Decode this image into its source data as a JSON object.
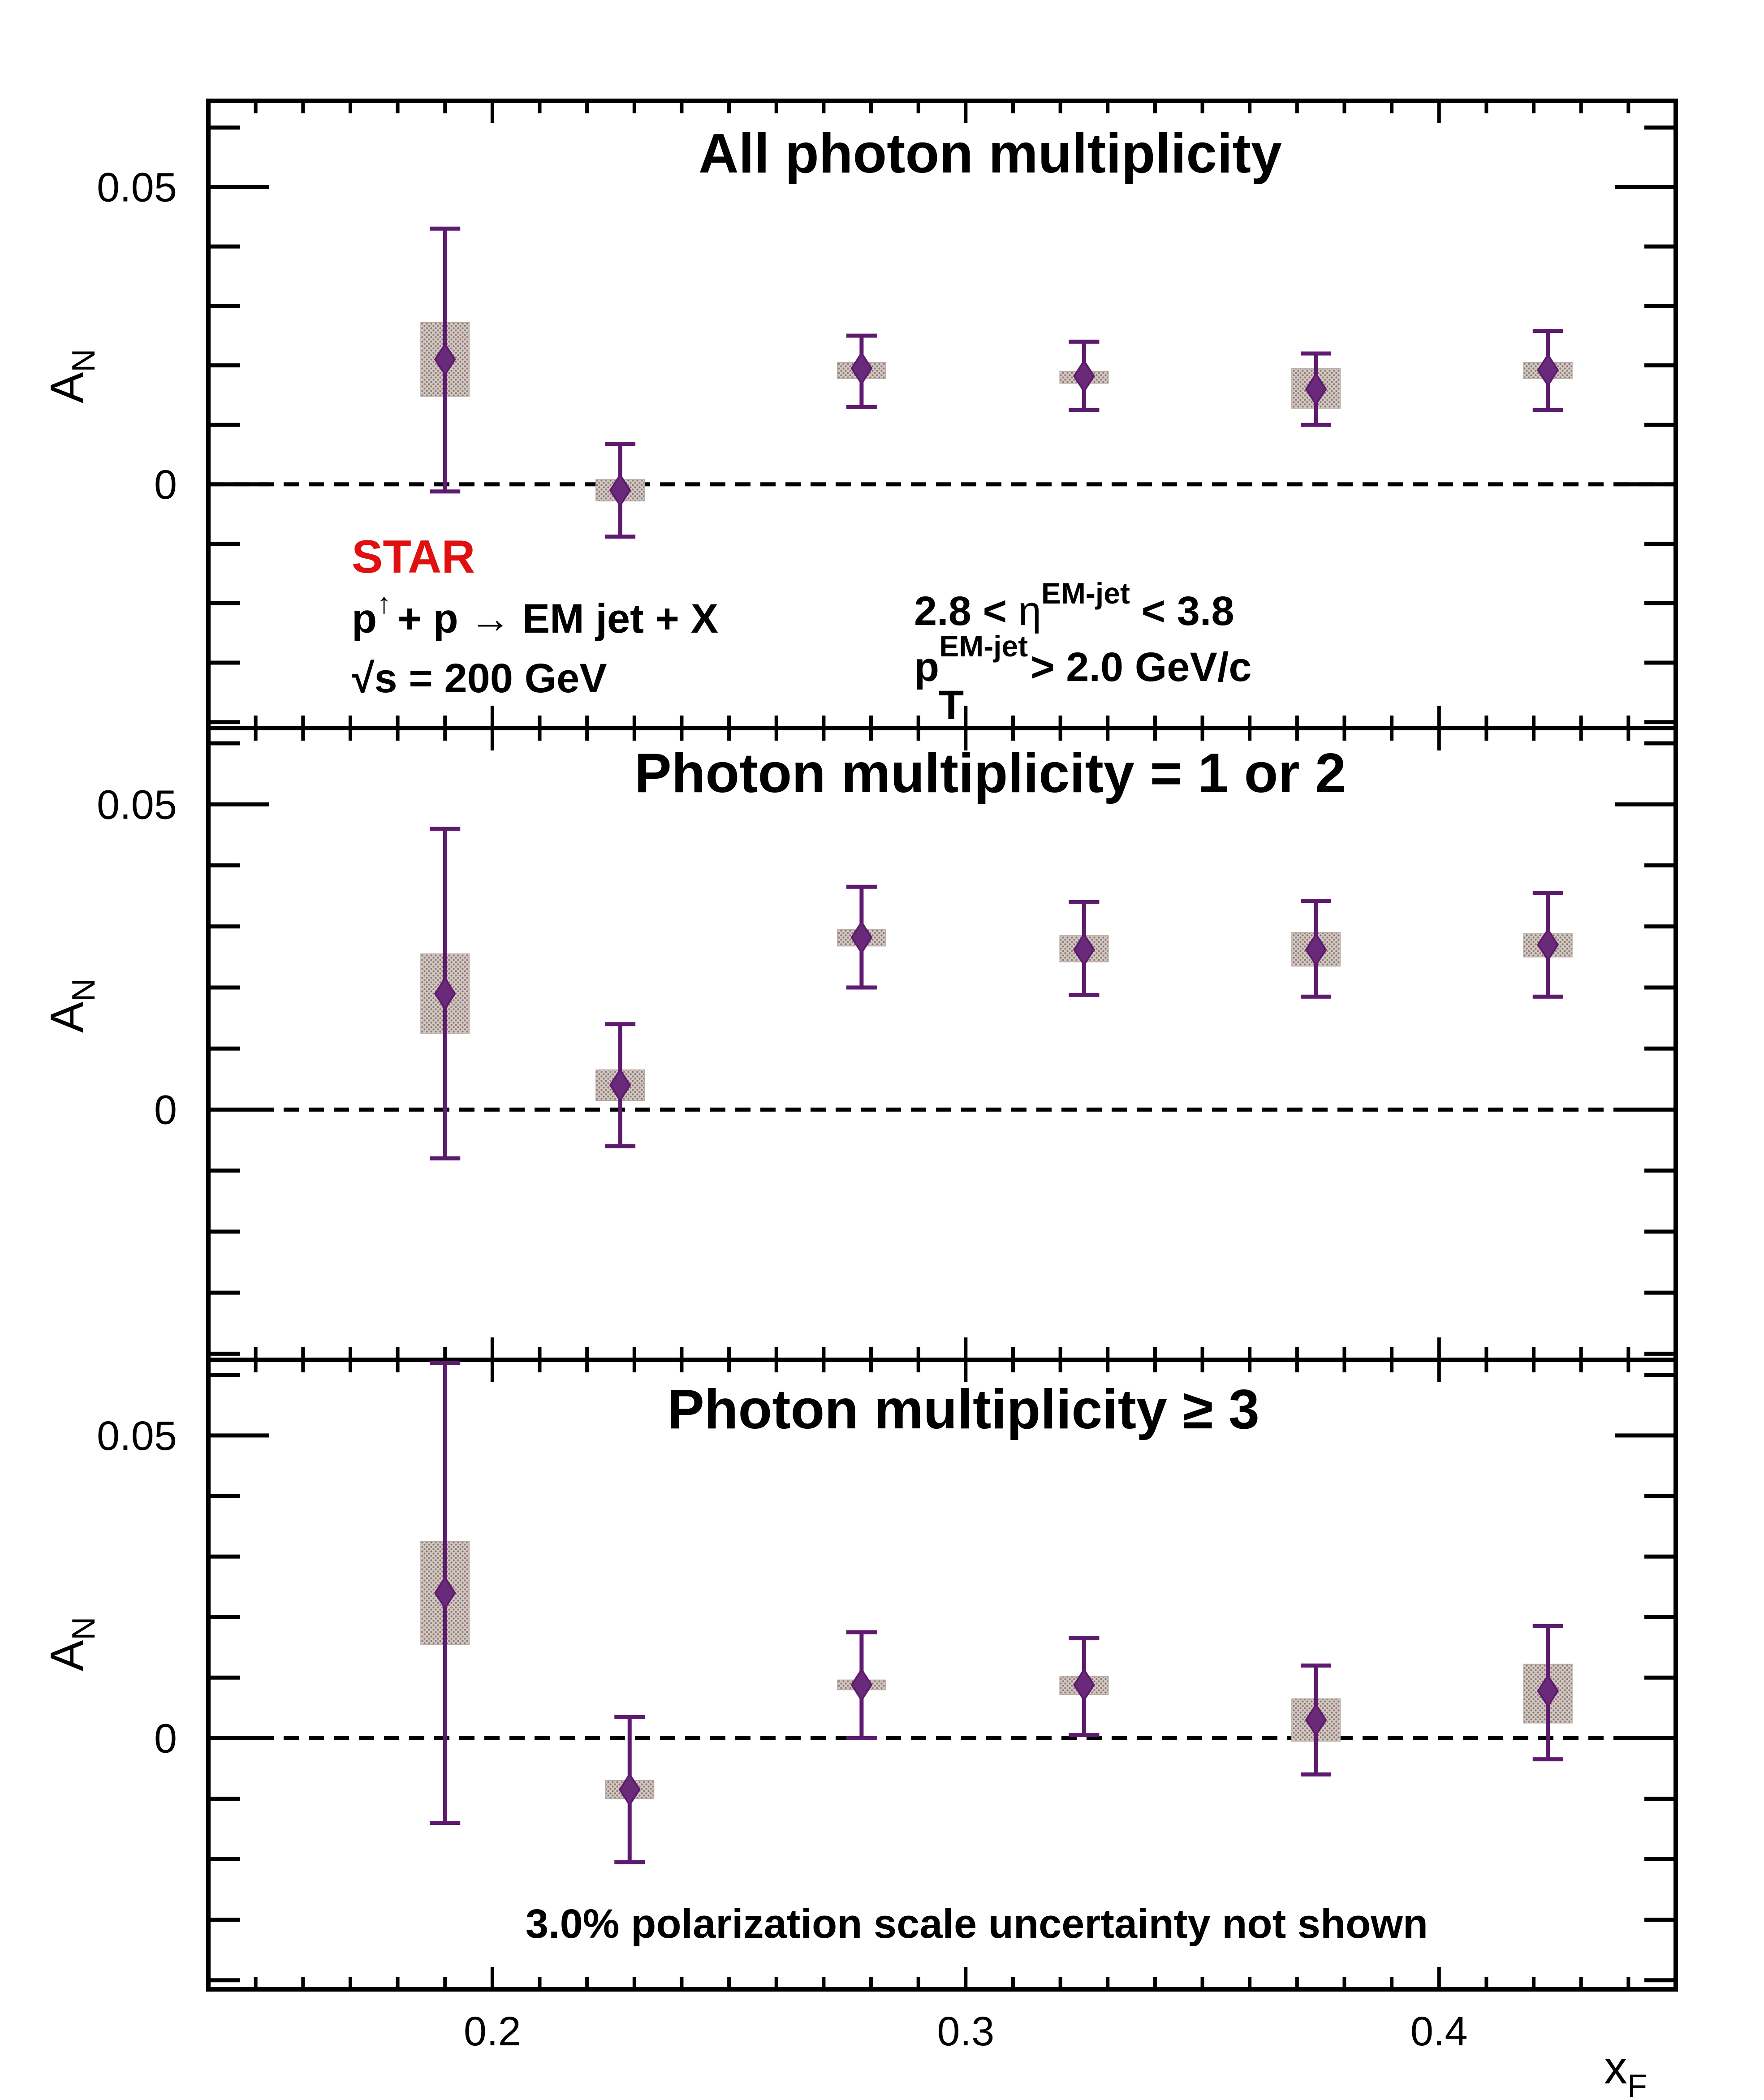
{
  "colors": {
    "marker": "#5e1a6e",
    "marker_fill": "#6a2a7a",
    "sys_band": "#b8aaa4",
    "star": "#e01010",
    "axes": "#000000"
  },
  "figure": {
    "xlabel_main": "x",
    "xlabel_sub": "F",
    "ylabel_main": "A",
    "ylabel_sub": "N",
    "star_label": "STAR",
    "reaction_p": "p",
    "reaction_arrow_sup": "↑",
    "reaction_rest": "+ p  → EM jet + X",
    "sqrt_symbol": "√",
    "sqrt_s_text": "s = 200 GeV",
    "eta_cut_left": "2.8 < ",
    "eta_symbol": "η",
    "eta_sup": "EM-jet",
    "eta_cut_right": " < 3.8",
    "pt_p": "p",
    "pt_sub": "T",
    "pt_sup": "EM-jet",
    "pt_cut_right": " > 2.0 GeV/c",
    "note": "3.0% polarization scale uncertainty not shown"
  },
  "chart_data": [
    {
      "type": "scatter",
      "title": "All photon multiplicity",
      "xlabel": "x_F",
      "ylabel": "A_N",
      "xlim": [
        0.14,
        0.45
      ],
      "ylim": [
        -0.041,
        0.0645
      ],
      "x_ticks": [
        "0.2",
        "0.3",
        "0.4"
      ],
      "y_ticks": [
        "0",
        "0.05"
      ],
      "reference_line": 0,
      "points": [
        {
          "x": 0.19,
          "y": 0.021,
          "y_low": -0.0012,
          "y_high": 0.043,
          "sys_low": 0.0148,
          "sys_high": 0.0272
        },
        {
          "x": 0.227,
          "y": -0.001,
          "y_low": -0.0088,
          "y_high": 0.0068,
          "sys_low": -0.0028,
          "sys_high": 0.0008
        },
        {
          "x": 0.278,
          "y": 0.0195,
          "y_low": 0.013,
          "y_high": 0.025,
          "sys_low": 0.0178,
          "sys_high": 0.0205
        },
        {
          "x": 0.325,
          "y": 0.0182,
          "y_low": 0.0125,
          "y_high": 0.024,
          "sys_low": 0.017,
          "sys_high": 0.019
        },
        {
          "x": 0.374,
          "y": 0.016,
          "y_low": 0.01,
          "y_high": 0.022,
          "sys_low": 0.0128,
          "sys_high": 0.0195
        },
        {
          "x": 0.423,
          "y": 0.0192,
          "y_low": 0.0125,
          "y_high": 0.0258,
          "sys_low": 0.0178,
          "sys_high": 0.0205
        }
      ]
    },
    {
      "type": "scatter",
      "title": "Photon multiplicity = 1 or 2",
      "xlabel": "x_F",
      "ylabel": "A_N",
      "xlim": [
        0.14,
        0.45
      ],
      "ylim": [
        -0.041,
        0.0625
      ],
      "x_ticks": [
        "0.2",
        "0.3",
        "0.4"
      ],
      "y_ticks": [
        "0",
        "0.05"
      ],
      "reference_line": 0,
      "points": [
        {
          "x": 0.19,
          "y": 0.019,
          "y_low": -0.008,
          "y_high": 0.046,
          "sys_low": 0.0125,
          "sys_high": 0.0255
        },
        {
          "x": 0.227,
          "y": 0.004,
          "y_low": -0.006,
          "y_high": 0.014,
          "sys_low": 0.0015,
          "sys_high": 0.0065
        },
        {
          "x": 0.278,
          "y": 0.0282,
          "y_low": 0.02,
          "y_high": 0.0365,
          "sys_low": 0.0268,
          "sys_high": 0.0295
        },
        {
          "x": 0.325,
          "y": 0.0262,
          "y_low": 0.0188,
          "y_high": 0.034,
          "sys_low": 0.0242,
          "sys_high": 0.0285
        },
        {
          "x": 0.374,
          "y": 0.0262,
          "y_low": 0.0185,
          "y_high": 0.0342,
          "sys_low": 0.0235,
          "sys_high": 0.029
        },
        {
          "x": 0.423,
          "y": 0.027,
          "y_low": 0.0185,
          "y_high": 0.0355,
          "sys_low": 0.025,
          "sys_high": 0.0288
        }
      ]
    },
    {
      "type": "scatter",
      "title": "Photon multiplicity ≥ 3",
      "xlabel": "x_F",
      "ylabel": "A_N",
      "xlim": [
        0.14,
        0.45
      ],
      "ylim": [
        -0.0415,
        0.0625
      ],
      "x_ticks": [
        "0.2",
        "0.3",
        "0.4"
      ],
      "y_ticks": [
        "0",
        "0.05"
      ],
      "reference_line": 0,
      "points": [
        {
          "x": 0.19,
          "y": 0.024,
          "y_low": -0.014,
          "y_high": 0.062,
          "sys_low": 0.0155,
          "sys_high": 0.0325
        },
        {
          "x": 0.229,
          "y": -0.0085,
          "y_low": -0.0205,
          "y_high": 0.0035,
          "sys_low": -0.01,
          "sys_high": -0.007
        },
        {
          "x": 0.278,
          "y": 0.0088,
          "y_low": 0.0,
          "y_high": 0.0175,
          "sys_low": 0.008,
          "sys_high": 0.0096
        },
        {
          "x": 0.325,
          "y": 0.0088,
          "y_low": 0.0005,
          "y_high": 0.0165,
          "sys_low": 0.0072,
          "sys_high": 0.0102
        },
        {
          "x": 0.374,
          "y": 0.003,
          "y_low": -0.006,
          "y_high": 0.012,
          "sys_low": -0.0005,
          "sys_high": 0.0065
        },
        {
          "x": 0.423,
          "y": 0.0078,
          "y_low": -0.0035,
          "y_high": 0.0185,
          "sys_low": 0.0025,
          "sys_high": 0.0122
        }
      ]
    }
  ]
}
